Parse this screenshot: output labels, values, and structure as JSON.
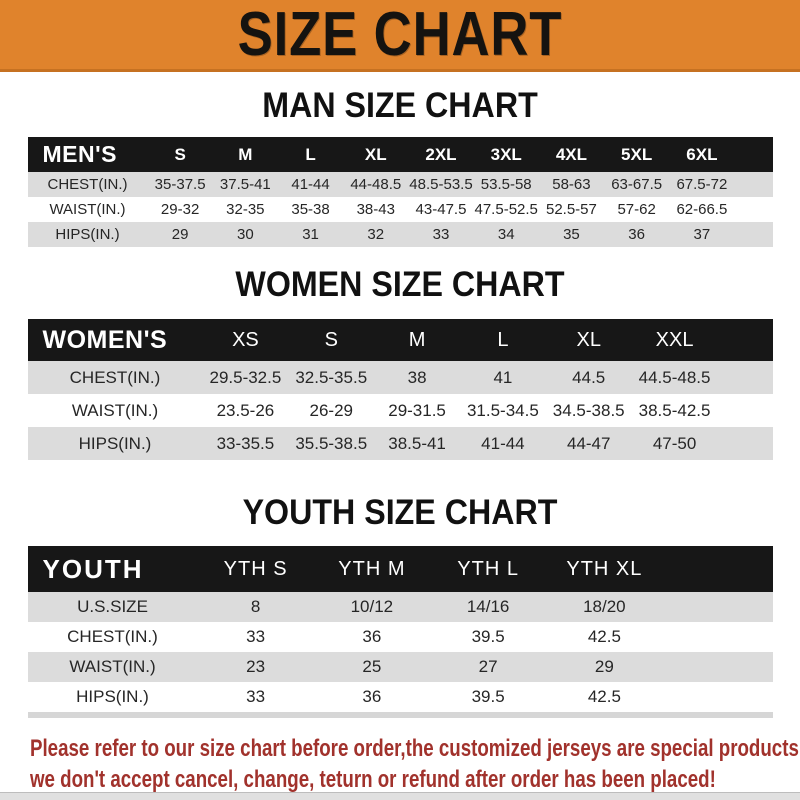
{
  "banner": {
    "title": "SIZE CHART"
  },
  "colors": {
    "banner_bg": "#e0832c",
    "bar_bg": "#171717",
    "row_alt_bg": "#dcdcdc",
    "heading_black": "#111111",
    "footer_red": "#a1322c"
  },
  "sections": [
    {
      "id": "men",
      "heading": "MAN SIZE CHART",
      "group_label": "MEN'S",
      "columns": [
        "S",
        "M",
        "L",
        "XL",
        "2XL",
        "3XL",
        "4XL",
        "5XL",
        "6XL"
      ],
      "rows": [
        {
          "label": "CHEST(IN.)",
          "values": [
            "35-37.5",
            "37.5-41",
            "41-44",
            "44-48.5",
            "48.5-53.5",
            "53.5-58",
            "58-63",
            "63-67.5",
            "67.5-72"
          ]
        },
        {
          "label": "WAIST(IN.)",
          "values": [
            "29-32",
            "32-35",
            "35-38",
            "38-43",
            "43-47.5",
            "47.5-52.5",
            "52.5-57",
            "57-62",
            "62-66.5"
          ]
        },
        {
          "label": "HIPS(IN.)",
          "values": [
            "29",
            "30",
            "31",
            "32",
            "33",
            "34",
            "35",
            "36",
            "37"
          ]
        }
      ]
    },
    {
      "id": "women",
      "heading": "WOMEN SIZE CHART",
      "group_label": "WOMEN'S",
      "columns": [
        "XS",
        "S",
        "M",
        "L",
        "XL",
        "XXL"
      ],
      "rows": [
        {
          "label": "CHEST(IN.)",
          "values": [
            "29.5-32.5",
            "32.5-35.5",
            "38",
            "41",
            "44.5",
            "44.5-48.5"
          ]
        },
        {
          "label": "WAIST(IN.)",
          "values": [
            "23.5-26",
            "26-29",
            "29-31.5",
            "31.5-34.5",
            "34.5-38.5",
            "38.5-42.5"
          ]
        },
        {
          "label": "HIPS(IN.)",
          "values": [
            "33-35.5",
            "35.5-38.5",
            "38.5-41",
            "41-44",
            "44-47",
            "47-50"
          ]
        }
      ]
    },
    {
      "id": "youth",
      "heading": "YOUTH SIZE CHART",
      "group_label": "YOUTH",
      "columns": [
        "YTH S",
        "YTH M",
        "YTH L",
        "YTH XL"
      ],
      "rows": [
        {
          "label": "U.S.SIZE",
          "values": [
            "8",
            "10/12",
            "14/16",
            "18/20"
          ]
        },
        {
          "label": "CHEST(IN.)",
          "values": [
            "33",
            "36",
            "39.5",
            "42.5"
          ]
        },
        {
          "label": "WAIST(IN.)",
          "values": [
            "23",
            "25",
            "27",
            "29"
          ]
        },
        {
          "label": "HIPS(IN.)",
          "values": [
            "33",
            "36",
            "39.5",
            "42.5"
          ]
        }
      ]
    }
  ],
  "footer": {
    "line1": "Please refer to our size chart before order,the customized jerseys are special products,",
    "line2": "we don't accept cancel, change, teturn or refund after order has been placed!"
  }
}
